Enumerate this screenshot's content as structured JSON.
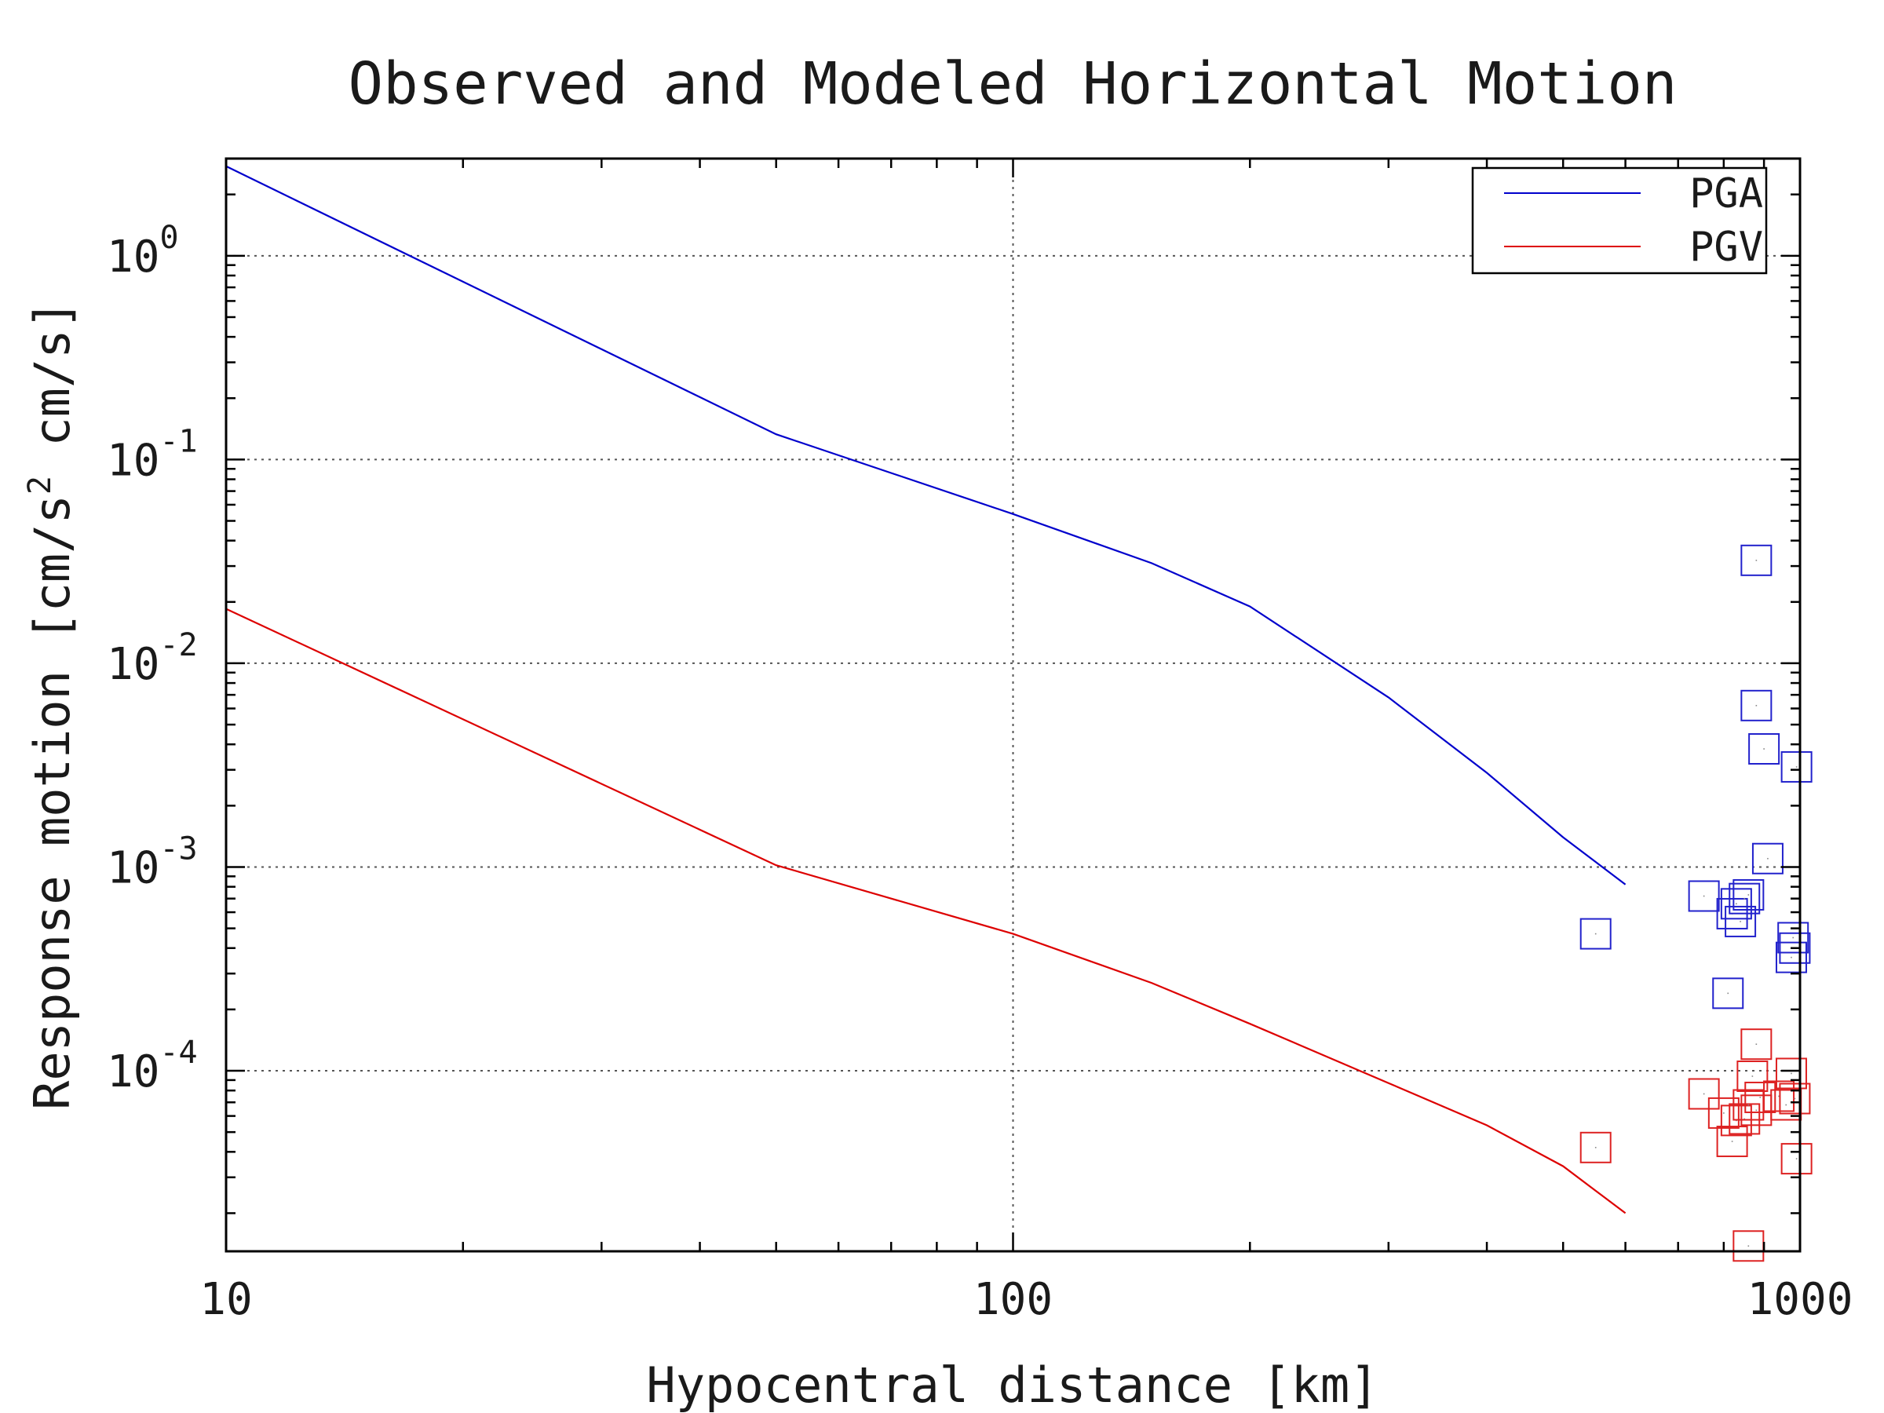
{
  "chart_data": {
    "type": "scatter",
    "title": "Observed and Modeled Horizontal Motion",
    "xlabel": "Hypocentral distance [km]",
    "ylabel_parts": [
      "Response motion [cm/s",
      "2",
      " cm/s]"
    ],
    "xscale": "log",
    "yscale": "log",
    "xlim": [
      10,
      1000
    ],
    "ylim": [
      1.3e-05,
      3.0
    ],
    "x_ticks": [
      {
        "value": 10,
        "label": "10"
      },
      {
        "value": 100,
        "label": "100"
      },
      {
        "value": 1000,
        "label": "1000"
      }
    ],
    "y_ticks": [
      {
        "value": 1,
        "base": "10",
        "exp": "0"
      },
      {
        "value": 0.1,
        "base": "10",
        "exp": "-1"
      },
      {
        "value": 0.01,
        "base": "10",
        "exp": "-2"
      },
      {
        "value": 0.001,
        "base": "10",
        "exp": "-3"
      },
      {
        "value": 0.0001,
        "base": "10",
        "exp": "-4"
      }
    ],
    "grid": true,
    "legend_position": "top-right",
    "series": [
      {
        "name": "PGA",
        "kind": "line",
        "color": "#0000cc",
        "points": [
          [
            10,
            2.75
          ],
          [
            50,
            0.133
          ],
          [
            100,
            0.054
          ],
          [
            150,
            0.031
          ],
          [
            200,
            0.019
          ],
          [
            300,
            0.0068
          ],
          [
            400,
            0.0029
          ],
          [
            500,
            0.0014
          ],
          [
            600,
            0.00082
          ]
        ]
      },
      {
        "name": "PGV",
        "kind": "line",
        "color": "#dd0000",
        "points": [
          [
            10,
            0.0185
          ],
          [
            50,
            0.00102
          ],
          [
            100,
            0.00047
          ],
          [
            150,
            0.00027
          ],
          [
            200,
            0.00017
          ],
          [
            300,
            8.7e-05
          ],
          [
            400,
            5.4e-05
          ],
          [
            500,
            3.4e-05
          ],
          [
            600,
            2e-05
          ]
        ]
      },
      {
        "name": "",
        "kind": "markers",
        "color": "#2222cc",
        "points": [
          [
            550,
            0.00047
          ],
          [
            755,
            0.00072
          ],
          [
            820,
            0.00059
          ],
          [
            830,
            0.00066
          ],
          [
            840,
            0.00054
          ],
          [
            850,
            0.0007
          ],
          [
            860,
            0.00073
          ],
          [
            810,
            0.00024
          ],
          [
            880,
            0.032
          ],
          [
            880,
            0.0062
          ],
          [
            900,
            0.0038
          ],
          [
            910,
            0.0011
          ],
          [
            990,
            0.0031
          ],
          [
            980,
            0.00045
          ],
          [
            975,
            0.00036
          ],
          [
            985,
            0.0004
          ]
        ]
      },
      {
        "name": "",
        "kind": "markers",
        "color": "#dd2222",
        "points": [
          [
            550,
            4.2e-05
          ],
          [
            755,
            7.7e-05
          ],
          [
            800,
            6.2e-05
          ],
          [
            820,
            4.5e-05
          ],
          [
            830,
            5.7e-05
          ],
          [
            850,
            5.8e-05
          ],
          [
            860,
            6.8e-05
          ],
          [
            880,
            6.4e-05
          ],
          [
            870,
            9.4e-05
          ],
          [
            880,
            0.000135
          ],
          [
            890,
            7.4e-05
          ],
          [
            940,
            7.5e-05
          ],
          [
            960,
            6.8e-05
          ],
          [
            975,
            9.7e-05
          ],
          [
            985,
            7.3e-05
          ],
          [
            990,
            3.7e-05
          ],
          [
            860,
            1.38e-05
          ]
        ]
      }
    ]
  }
}
